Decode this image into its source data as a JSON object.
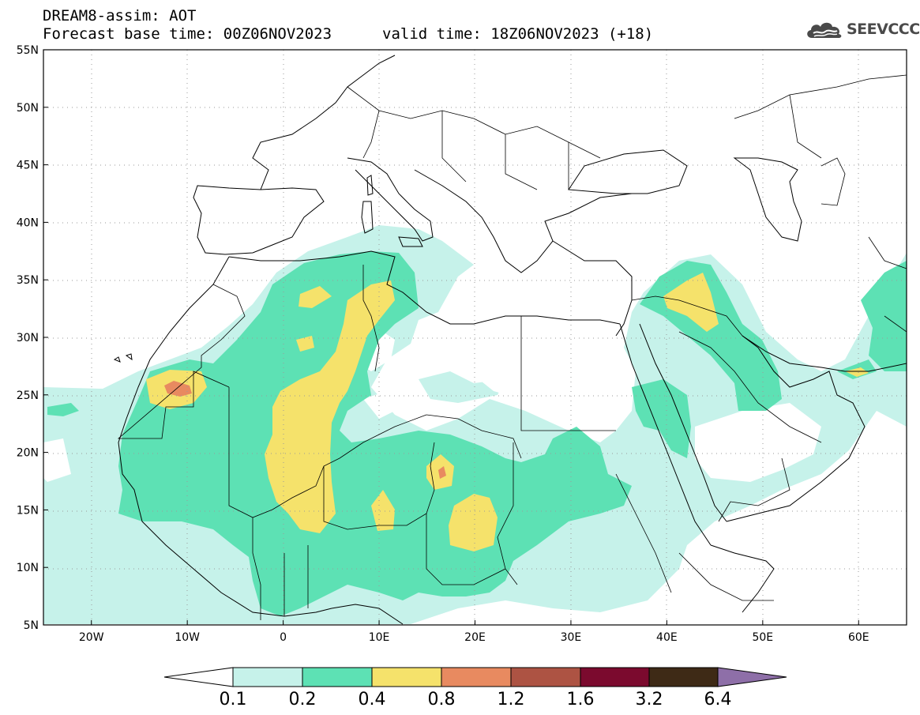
{
  "header": {
    "model_line": "DREAM8-assim: AOT",
    "base_time": "Forecast base time: 00Z06NOV2023",
    "valid_time": "valid time: 18Z06NOV2023 (+18)"
  },
  "logo": {
    "text": "SEEVCCC",
    "icon": "cloud-logo-icon"
  },
  "map": {
    "lon_range": [
      -25,
      65
    ],
    "lat_range": [
      5,
      55
    ],
    "lat_ticks": [
      "55N",
      "50N",
      "45N",
      "40N",
      "35N",
      "30N",
      "25N",
      "20N",
      "15N",
      "10N",
      "5N"
    ],
    "lon_ticks": [
      "20W",
      "10W",
      "0",
      "10E",
      "20E",
      "30E",
      "40E",
      "50E",
      "60E"
    ],
    "grid": "dotted"
  },
  "colorbar": {
    "labels": [
      "0.1",
      "0.2",
      "0.4",
      "0.8",
      "1.2",
      "1.6",
      "3.2",
      "6.4"
    ],
    "colors": {
      "under": "#ffffff",
      "c1": "#c6f2ea",
      "c2": "#5de1b4",
      "c3": "#f5e26b",
      "c4": "#e88a60",
      "c5": "#ad5343",
      "c6": "#7b0a2e",
      "c7": "#3e2a16",
      "over": "#8e6fa8"
    }
  }
}
